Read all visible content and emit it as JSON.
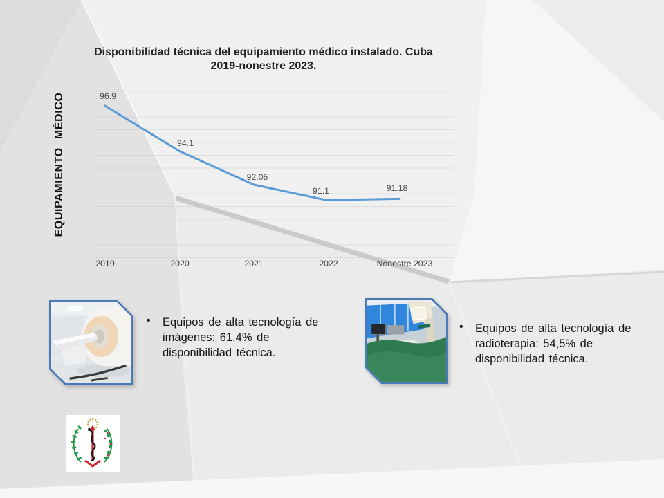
{
  "slide": {
    "vertical_label": "EQUIPAMIENTO MÉDICO"
  },
  "chart_data": {
    "type": "line",
    "title": "Disponibilidad técnica del equipamiento médico instalado. Cuba 2019-nonestre 2023.",
    "categories": [
      "2019",
      "2020",
      "2021",
      "2022",
      "Nonestre 2023"
    ],
    "series": [
      {
        "name": "Disponibilidad técnica",
        "values": [
          96.9,
          94.1,
          92.05,
          91.1,
          91.18
        ]
      }
    ],
    "data_labels": [
      "96.9",
      "94.1",
      "92.05",
      "91.1",
      "91.18"
    ],
    "line_color": "#5b9bd5",
    "grid": true,
    "legend": "none",
    "ylim": [
      90.5,
      97.5
    ],
    "xlabel": "",
    "ylabel": ""
  },
  "bullets": [
    {
      "marker": "•",
      "text": "Equipos de alta tecnología de imágenes: 61.4% de disponibilidad técnica."
    },
    {
      "marker": "•",
      "text": "Equipos de alta tecnología de radioterapia: 54,5% de disponibilidad técnica."
    }
  ],
  "colors": {
    "line": "#5b9bd5",
    "photo_border": "#4a7ab8",
    "title_text": "#222222",
    "body_text": "#151515",
    "background": "#e9e9e9"
  }
}
